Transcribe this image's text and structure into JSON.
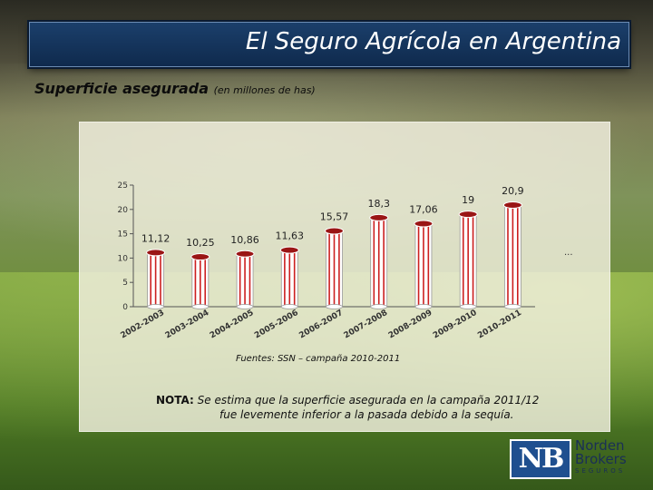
{
  "slide": {
    "title": "El Seguro Agrícola en Argentina",
    "subtitle_main": "Superficie asegurada",
    "subtitle_units": "(en millones de has)",
    "source": "Fuentes: SSN – campaña 2010-2011",
    "note_label": "NOTA:",
    "note_line1": "Se estima que la superficie asegurada en la campaña 2011/12",
    "note_line2": "fue levemente inferior a la pasada debido a la sequía.",
    "logo": {
      "monogram": "NB",
      "word1": "Norden",
      "word2": "Brokers",
      "word3": "SEGUROS",
      "brand_color": "#1f4f8f"
    }
  },
  "chart_data": {
    "type": "bar",
    "title": "",
    "xlabel": "",
    "ylabel": "",
    "categories": [
      "2002-2003",
      "2003-2004",
      "2004-2005",
      "2005-2006",
      "2006-2007",
      "2007-2008",
      "2008-2009",
      "2009-2010",
      "2010-2011"
    ],
    "values": [
      11.12,
      10.25,
      10.86,
      11.63,
      15.57,
      18.3,
      17.06,
      19,
      20.9
    ],
    "value_labels": [
      "11,12",
      "10,25",
      "10,86",
      "11,63",
      "15,57",
      "18,3",
      "17,06",
      "19",
      "20,9"
    ],
    "ylim": [
      0,
      25
    ],
    "yticks": [
      "0",
      "5",
      "10",
      "15",
      "20",
      "25"
    ],
    "grid": false,
    "bar_color": "#cc1f1f",
    "extra_mark": "..."
  }
}
